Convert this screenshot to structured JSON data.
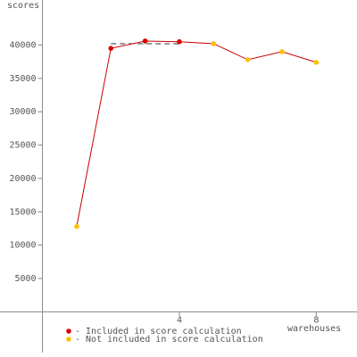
{
  "chart_data": {
    "type": "line",
    "y_label": "scores",
    "x_label": "warehouses",
    "x": [
      1,
      2,
      3,
      4,
      5,
      6,
      7,
      8
    ],
    "series": [
      {
        "color": "#cc0000",
        "values": [
          12800,
          39500,
          40600,
          40500,
          40200,
          37800,
          39000,
          37400
        ]
      }
    ],
    "included": [
      false,
      true,
      true,
      true,
      false,
      false,
      false,
      false
    ],
    "legend": [
      {
        "label": "- Included in score calculation",
        "color": "#dd0000"
      },
      {
        "label": "- Not included in score calculation",
        "color": "#ffc000"
      }
    ],
    "score_line": {
      "value": 40200,
      "x": [
        2,
        4
      ]
    },
    "xlim": [
      -1.24,
      9.19
    ],
    "ylim": [
      -6100,
      46750
    ],
    "xticks": [
      4,
      8
    ],
    "yticks": [
      5000,
      10000,
      15000,
      20000,
      25000,
      30000,
      35000,
      40000
    ]
  }
}
